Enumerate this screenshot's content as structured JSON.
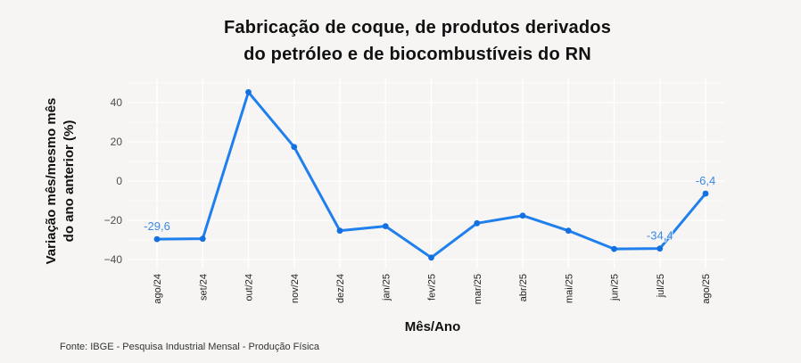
{
  "title": {
    "line1": "Fabricação de coque, de produtos derivados",
    "line2": "do petróleo e de biocombustíveis do RN"
  },
  "axes": {
    "xlabel": "Mês/Ano",
    "ylabel_line1": "Variação mês/mesmo mês",
    "ylabel_line2": "do ano anterior (%)"
  },
  "caption": "Fonte: IBGE - Pesquisa Industrial Mensal - Produção Física",
  "colors": {
    "background": "#f6f5f4",
    "line": "#1f80ed",
    "point": "#1470e0",
    "label": "#3a8ae6",
    "grid": "#ffffff",
    "tick_text": "#4d4d4d"
  },
  "chart_data": {
    "type": "line",
    "title": "Fabricação de coque, de produtos derivados do petróleo e de biocombustíveis do RN",
    "xlabel": "Mês/Ano",
    "ylabel": "Variação mês/mesmo mês do ano anterior (%)",
    "categories": [
      "ago/24",
      "set/24",
      "out/24",
      "nov/24",
      "dez/24",
      "jan/25",
      "fev/25",
      "mar/25",
      "abr/25",
      "mai/25",
      "jun/25",
      "jul/25",
      "ago/25"
    ],
    "values": [
      -29.6,
      -29.4,
      45.3,
      17.4,
      -25.3,
      -23.0,
      -39.0,
      -21.5,
      -17.6,
      -25.3,
      -34.6,
      -34.4,
      -6.4
    ],
    "data_labels": [
      {
        "category": "ago/24",
        "text": "-29,6"
      },
      {
        "category": "jul/25",
        "text": "-34,4"
      },
      {
        "category": "ago/25",
        "text": "-6,4"
      }
    ],
    "yticks": [
      -40,
      -20,
      0,
      20,
      40
    ],
    "ytick_labels": [
      "−40",
      "−20",
      "0",
      "20",
      "40"
    ],
    "ylim": [
      -44.4,
      52.2
    ],
    "grid": true,
    "legend": "none"
  }
}
